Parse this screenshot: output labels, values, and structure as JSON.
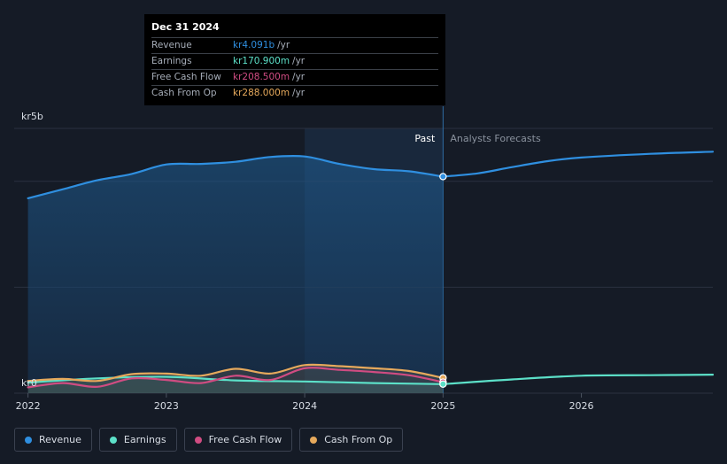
{
  "colors": {
    "revenue": "#2f8fe0",
    "earnings": "#5ce0c8",
    "fcf": "#d04c82",
    "cfo": "#e6a95c",
    "grid": "#2a3140",
    "background": "#151b26"
  },
  "tooltip": {
    "date": "Dec 31 2024",
    "rows": [
      {
        "label": "Revenue",
        "value": "kr4.091b",
        "unit": "/yr",
        "color": "#2f8fe0"
      },
      {
        "label": "Earnings",
        "value": "kr170.900m",
        "unit": "/yr",
        "color": "#5ce0c8"
      },
      {
        "label": "Free Cash Flow",
        "value": "kr208.500m",
        "unit": "/yr",
        "color": "#d04c82"
      },
      {
        "label": "Cash From Op",
        "value": "kr288.000m",
        "unit": "/yr",
        "color": "#e6a95c"
      }
    ]
  },
  "labels": {
    "past": "Past",
    "forecast": "Analysts Forecasts"
  },
  "legend": [
    {
      "label": "Revenue",
      "color": "#2f8fe0"
    },
    {
      "label": "Earnings",
      "color": "#5ce0c8"
    },
    {
      "label": "Free Cash Flow",
      "color": "#d04c82"
    },
    {
      "label": "Cash From Op",
      "color": "#e6a95c"
    }
  ],
  "chart_data": {
    "type": "line",
    "y_unit": "kr billions",
    "ylim": [
      0,
      5
    ],
    "y_tick_labels": [
      {
        "value": 0,
        "label": "kr0"
      },
      {
        "value": 5,
        "label": "kr5b"
      }
    ],
    "xlim": [
      2021.9,
      2026.95
    ],
    "x_ticks": [
      2022,
      2023,
      2024,
      2025,
      2026
    ],
    "highlight_start": 2024.0,
    "divider_x": 2025.0,
    "grid": true,
    "series": [
      {
        "name": "Revenue",
        "key": "revenue",
        "area": true,
        "points": [
          [
            2022.0,
            3.68
          ],
          [
            2022.25,
            3.85
          ],
          [
            2022.5,
            4.02
          ],
          [
            2022.75,
            4.14
          ],
          [
            2023.0,
            4.32
          ],
          [
            2023.25,
            4.33
          ],
          [
            2023.5,
            4.37
          ],
          [
            2023.75,
            4.46
          ],
          [
            2024.0,
            4.47
          ],
          [
            2024.25,
            4.33
          ],
          [
            2024.5,
            4.23
          ],
          [
            2024.75,
            4.19
          ],
          [
            2025.0,
            4.09
          ]
        ]
      },
      {
        "name": "Revenue (forecast)",
        "key": "revenue",
        "area": false,
        "points": [
          [
            2025.0,
            4.09
          ],
          [
            2025.25,
            4.15
          ],
          [
            2025.5,
            4.27
          ],
          [
            2025.75,
            4.38
          ],
          [
            2026.0,
            4.45
          ],
          [
            2026.5,
            4.52
          ],
          [
            2026.95,
            4.56
          ]
        ]
      },
      {
        "name": "Earnings",
        "key": "earnings",
        "area": true,
        "points": [
          [
            2022.0,
            0.2
          ],
          [
            2022.5,
            0.28
          ],
          [
            2023.0,
            0.31
          ],
          [
            2023.5,
            0.24
          ],
          [
            2024.0,
            0.22
          ],
          [
            2024.5,
            0.19
          ],
          [
            2025.0,
            0.171
          ]
        ]
      },
      {
        "name": "Earnings (forecast)",
        "key": "earnings",
        "area": false,
        "points": [
          [
            2025.0,
            0.171
          ],
          [
            2025.5,
            0.26
          ],
          [
            2026.0,
            0.33
          ],
          [
            2026.5,
            0.34
          ],
          [
            2026.95,
            0.35
          ]
        ]
      },
      {
        "name": "Free Cash Flow",
        "key": "fcf",
        "area": false,
        "points": [
          [
            2022.0,
            0.11
          ],
          [
            2022.25,
            0.19
          ],
          [
            2022.5,
            0.12
          ],
          [
            2022.75,
            0.28
          ],
          [
            2023.0,
            0.25
          ],
          [
            2023.25,
            0.19
          ],
          [
            2023.5,
            0.33
          ],
          [
            2023.75,
            0.25
          ],
          [
            2024.0,
            0.47
          ],
          [
            2024.25,
            0.44
          ],
          [
            2024.5,
            0.4
          ],
          [
            2024.75,
            0.34
          ],
          [
            2025.0,
            0.2085
          ]
        ]
      },
      {
        "name": "Cash From Op",
        "key": "cfo",
        "area": true,
        "points": [
          [
            2022.0,
            0.23
          ],
          [
            2022.25,
            0.27
          ],
          [
            2022.5,
            0.23
          ],
          [
            2022.75,
            0.36
          ],
          [
            2023.0,
            0.37
          ],
          [
            2023.25,
            0.33
          ],
          [
            2023.5,
            0.46
          ],
          [
            2023.75,
            0.37
          ],
          [
            2024.0,
            0.53
          ],
          [
            2024.25,
            0.51
          ],
          [
            2024.5,
            0.47
          ],
          [
            2024.75,
            0.42
          ],
          [
            2025.0,
            0.288
          ]
        ]
      }
    ],
    "markers": [
      {
        "x": 2025.0,
        "y": 4.09,
        "key": "revenue"
      },
      {
        "x": 2025.0,
        "y": 0.288,
        "key": "cfo"
      },
      {
        "x": 2025.0,
        "y": 0.2085,
        "key": "fcf"
      },
      {
        "x": 2025.0,
        "y": 0.171,
        "key": "earnings"
      }
    ]
  }
}
